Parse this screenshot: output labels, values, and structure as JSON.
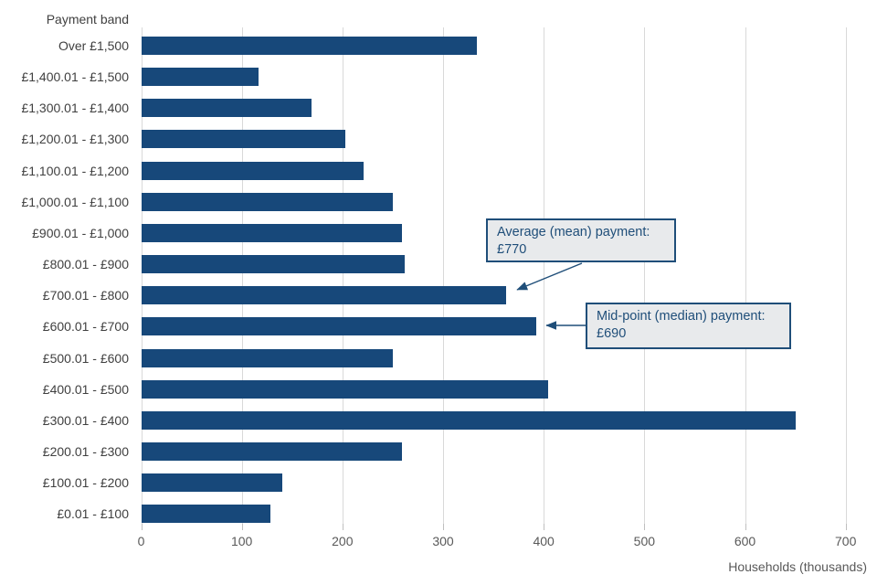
{
  "chart_data": {
    "type": "bar",
    "orientation": "horizontal",
    "ylabel": "Payment band",
    "xlabel": "Households (thousands)",
    "categories": [
      "Over £1,500",
      "£1,400.01 - £1,500",
      "£1,300.01 - £1,400",
      "£1,200.01 - £1,300",
      "£1,100.01 - £1,200",
      "£1,000.01 - £1,100",
      "£900.01 - £1,000",
      "£800.01 - £900",
      "£700.01 - £800",
      "£600.01 - £700",
      "£500.01 - £600",
      "£400.01 - £500",
      "£300.01 - £400",
      "£200.01 - £300",
      "£100.01 - £200",
      "£0.01 - £100"
    ],
    "values": [
      333,
      116,
      169,
      202,
      221,
      250,
      259,
      261,
      362,
      392,
      250,
      404,
      650,
      259,
      140,
      128
    ],
    "xlim": [
      0,
      700
    ],
    "x_ticks": [
      0,
      100,
      200,
      300,
      400,
      500,
      600,
      700
    ],
    "grid": "vertical-only",
    "legend": false,
    "bar_color": "#17487a",
    "gridline_color": "#d9d9d9",
    "annotation_color": "#1f4e79",
    "annotation_fill": "#e8eaec",
    "annotations": [
      {
        "line1": "Average (mean) payment:",
        "line2": "£770",
        "target_category": "£700.01 - £800"
      },
      {
        "line1": "Mid-point (median) payment:",
        "line2": "£690",
        "target_category": "£600.01 - £700"
      }
    ]
  }
}
